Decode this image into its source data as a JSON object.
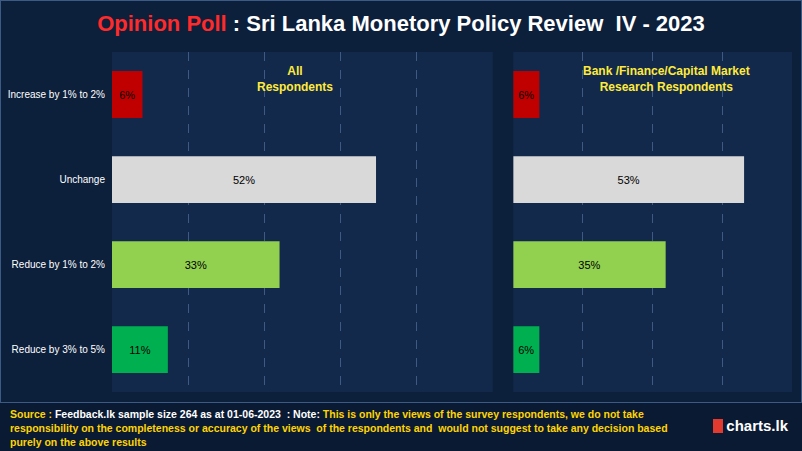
{
  "title": [
    "Opinion Poll",
    " : Sri Lanka Monetory Policy Review  IV - 2023"
  ],
  "source": [
    "Source :",
    " Feedback.lk sample size 264 as at 01-06-2023  : Note: ",
    "This is only the views of the survey respondents, we do not take responsibility on the completeness or accuracy of the views  of the respondents and  would not suggest to take any decision based purely on the above results"
  ],
  "logo": "charts.lk",
  "chart_data": [
    {
      "type": "bar",
      "title": "All Respondents",
      "orientation": "horizontal",
      "categories": [
        "Increase by 1% to 2%",
        "Unchange",
        "Reduce by 1% to 2%",
        "Reduce by 3% to 5%"
      ],
      "values": [
        6,
        52,
        33,
        11
      ],
      "value_labels": [
        "6%",
        "52%",
        "33%",
        "11%"
      ],
      "colors": [
        "#c00000",
        "#d9d9d9",
        "#92d050",
        "#00b050"
      ],
      "xlim": [
        0,
        75
      ],
      "xticks": [
        0,
        15,
        30,
        45,
        60,
        75
      ],
      "grid": true,
      "data_labels": true,
      "tick_labels": "y"
    },
    {
      "type": "bar",
      "title": "Bank /Finance/Capital Market Research Respondents",
      "orientation": "horizontal",
      "categories": [
        "Increase by 1% to 2%",
        "Unchange",
        "Reduce by 1% to 2%",
        "Reduce by 3% to 5%"
      ],
      "values": [
        6,
        53,
        35,
        6
      ],
      "value_labels": [
        "6%",
        "53%",
        "35%",
        "6%"
      ],
      "colors": [
        "#c00000",
        "#d9d9d9",
        "#92d050",
        "#00b050"
      ],
      "xlim": [
        0,
        64
      ],
      "xticks": [
        0,
        16,
        32,
        48,
        64
      ],
      "grid": true,
      "data_labels": true,
      "tick_labels": false
    }
  ]
}
